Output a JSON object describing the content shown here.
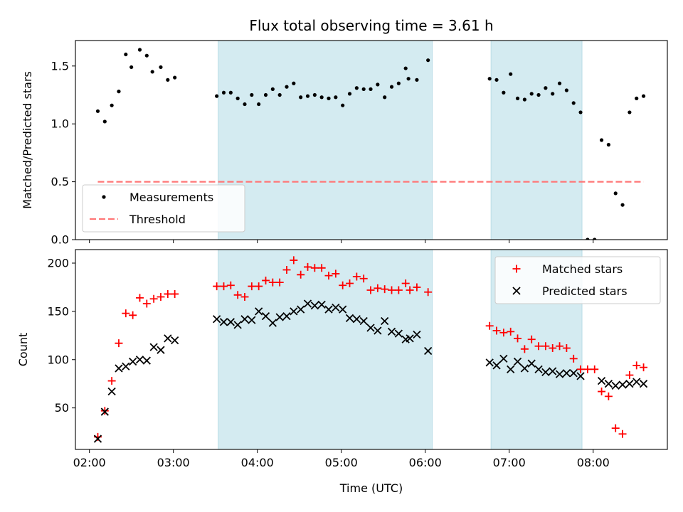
{
  "chart_data": {
    "title": "Flux total observing time = 3.61 h",
    "xlabel": "Time (UTC)",
    "x_ticks": [
      "02:00",
      "03:00",
      "04:00",
      "05:00",
      "06:00",
      "07:00",
      "08:00"
    ],
    "xlim": [
      "01:50",
      "08:53"
    ],
    "shaded_intervals": [
      [
        "03:32",
        "06:05"
      ],
      [
        "06:47",
        "07:52"
      ]
    ],
    "shade_color": "#d4ebf1",
    "panels": [
      {
        "type": "scatter",
        "ylabel": "Matched/Predicted stars",
        "ylim": [
          0,
          1.72
        ],
        "y_ticks": [
          "0.0",
          "0.5",
          "1.0",
          "1.5"
        ],
        "legend_position": "lower-left",
        "series": [
          {
            "name": "Measurements",
            "marker": "dot",
            "color": "#000000",
            "points": [
              [
                "02:06",
                1.11
              ],
              [
                "02:11",
                1.02
              ],
              [
                "02:16",
                1.16
              ],
              [
                "02:21",
                1.28
              ],
              [
                "02:26",
                1.6
              ],
              [
                "02:30",
                1.49
              ],
              [
                "02:36",
                1.64
              ],
              [
                "02:41",
                1.59
              ],
              [
                "02:45",
                1.45
              ],
              [
                "02:51",
                1.49
              ],
              [
                "02:56",
                1.38
              ],
              [
                "03:01",
                1.4
              ],
              [
                "03:31",
                1.24
              ],
              [
                "03:36",
                1.27
              ],
              [
                "03:41",
                1.27
              ],
              [
                "03:46",
                1.22
              ],
              [
                "03:51",
                1.17
              ],
              [
                "03:56",
                1.25
              ],
              [
                "04:01",
                1.17
              ],
              [
                "04:06",
                1.25
              ],
              [
                "04:11",
                1.3
              ],
              [
                "04:16",
                1.25
              ],
              [
                "04:21",
                1.32
              ],
              [
                "04:26",
                1.35
              ],
              [
                "04:31",
                1.23
              ],
              [
                "04:36",
                1.24
              ],
              [
                "04:41",
                1.25
              ],
              [
                "04:46",
                1.23
              ],
              [
                "04:51",
                1.22
              ],
              [
                "04:56",
                1.23
              ],
              [
                "05:01",
                1.16
              ],
              [
                "05:06",
                1.26
              ],
              [
                "05:11",
                1.31
              ],
              [
                "05:16",
                1.3
              ],
              [
                "05:21",
                1.3
              ],
              [
                "05:26",
                1.34
              ],
              [
                "05:31",
                1.23
              ],
              [
                "05:36",
                1.32
              ],
              [
                "05:41",
                1.35
              ],
              [
                "05:46",
                1.48
              ],
              [
                "05:48",
                1.39
              ],
              [
                "05:54",
                1.38
              ],
              [
                "06:02",
                1.55
              ],
              [
                "06:46",
                1.39
              ],
              [
                "06:51",
                1.38
              ],
              [
                "06:56",
                1.27
              ],
              [
                "07:01",
                1.43
              ],
              [
                "07:06",
                1.22
              ],
              [
                "07:11",
                1.21
              ],
              [
                "07:16",
                1.26
              ],
              [
                "07:21",
                1.25
              ],
              [
                "07:26",
                1.31
              ],
              [
                "07:31",
                1.26
              ],
              [
                "07:36",
                1.35
              ],
              [
                "07:41",
                1.29
              ],
              [
                "07:46",
                1.18
              ],
              [
                "07:51",
                1.1
              ],
              [
                "07:56",
                0.0
              ],
              [
                "08:01",
                0.0
              ],
              [
                "08:06",
                0.86
              ],
              [
                "08:11",
                0.82
              ],
              [
                "08:16",
                0.4
              ],
              [
                "08:21",
                0.3
              ],
              [
                "08:26",
                1.1
              ],
              [
                "08:31",
                1.22
              ],
              [
                "08:36",
                1.24
              ]
            ]
          },
          {
            "name": "Threshold",
            "marker": "dashed-line",
            "color": "#ff7777",
            "points": [
              [
                "02:06",
                0.5
              ],
              [
                "08:36",
                0.5
              ]
            ]
          }
        ]
      },
      {
        "type": "scatter",
        "ylabel": "Count",
        "ylim": [
          7,
          214
        ],
        "y_ticks": [
          "50",
          "100",
          "150",
          "200"
        ],
        "legend_position": "top-right",
        "series": [
          {
            "name": "Matched stars",
            "marker": "plus",
            "color": "#ff0000",
            "points": [
              [
                "02:06",
                20
              ],
              [
                "02:11",
                47
              ],
              [
                "02:16",
                78
              ],
              [
                "02:21",
                117
              ],
              [
                "02:26",
                148
              ],
              [
                "02:31",
                146
              ],
              [
                "02:36",
                164
              ],
              [
                "02:41",
                158
              ],
              [
                "02:46",
                163
              ],
              [
                "02:51",
                165
              ],
              [
                "02:56",
                168
              ],
              [
                "03:01",
                168
              ],
              [
                "03:31",
                176
              ],
              [
                "03:36",
                176
              ],
              [
                "03:41",
                177
              ],
              [
                "03:46",
                167
              ],
              [
                "03:51",
                165
              ],
              [
                "03:56",
                176
              ],
              [
                "04:01",
                176
              ],
              [
                "04:06",
                182
              ],
              [
                "04:11",
                180
              ],
              [
                "04:16",
                180
              ],
              [
                "04:21",
                193
              ],
              [
                "04:26",
                203
              ],
              [
                "04:31",
                188
              ],
              [
                "04:36",
                196
              ],
              [
                "04:41",
                195
              ],
              [
                "04:46",
                195
              ],
              [
                "04:51",
                187
              ],
              [
                "04:56",
                189
              ],
              [
                "05:01",
                177
              ],
              [
                "05:06",
                179
              ],
              [
                "05:11",
                186
              ],
              [
                "05:16",
                184
              ],
              [
                "05:21",
                172
              ],
              [
                "05:26",
                174
              ],
              [
                "05:31",
                173
              ],
              [
                "05:36",
                172
              ],
              [
                "05:41",
                172
              ],
              [
                "05:46",
                179
              ],
              [
                "05:49",
                172
              ],
              [
                "05:54",
                175
              ],
              [
                "06:02",
                170
              ],
              [
                "06:46",
                135
              ],
              [
                "06:51",
                130
              ],
              [
                "06:56",
                128
              ],
              [
                "07:01",
                129
              ],
              [
                "07:06",
                122
              ],
              [
                "07:11",
                111
              ],
              [
                "07:16",
                121
              ],
              [
                "07:21",
                114
              ],
              [
                "07:26",
                114
              ],
              [
                "07:31",
                112
              ],
              [
                "07:36",
                114
              ],
              [
                "07:41",
                112
              ],
              [
                "07:46",
                101
              ],
              [
                "07:51",
                90
              ],
              [
                "07:56",
                90
              ],
              [
                "08:01",
                90
              ],
              [
                "08:06",
                67
              ],
              [
                "08:11",
                62
              ],
              [
                "08:16",
                29
              ],
              [
                "08:21",
                23
              ],
              [
                "08:26",
                84
              ],
              [
                "08:31",
                94
              ],
              [
                "08:36",
                92
              ]
            ]
          },
          {
            "name": "Predicted stars",
            "marker": "x",
            "color": "#000000",
            "points": [
              [
                "02:06",
                18
              ],
              [
                "02:11",
                46
              ],
              [
                "02:16",
                67
              ],
              [
                "02:21",
                91
              ],
              [
                "02:26",
                93
              ],
              [
                "02:31",
                98
              ],
              [
                "02:36",
                100
              ],
              [
                "02:41",
                99
              ],
              [
                "02:46",
                113
              ],
              [
                "02:51",
                110
              ],
              [
                "02:56",
                122
              ],
              [
                "03:01",
                120
              ],
              [
                "03:31",
                142
              ],
              [
                "03:36",
                139
              ],
              [
                "03:41",
                139
              ],
              [
                "03:46",
                136
              ],
              [
                "03:51",
                142
              ],
              [
                "03:56",
                141
              ],
              [
                "04:01",
                150
              ],
              [
                "04:06",
                145
              ],
              [
                "04:11",
                138
              ],
              [
                "04:16",
                144
              ],
              [
                "04:21",
                145
              ],
              [
                "04:26",
                150
              ],
              [
                "04:31",
                152
              ],
              [
                "04:36",
                158
              ],
              [
                "04:41",
                156
              ],
              [
                "04:46",
                157
              ],
              [
                "04:51",
                152
              ],
              [
                "04:56",
                154
              ],
              [
                "05:01",
                152
              ],
              [
                "05:06",
                143
              ],
              [
                "05:11",
                142
              ],
              [
                "05:16",
                140
              ],
              [
                "05:21",
                133
              ],
              [
                "05:26",
                130
              ],
              [
                "05:31",
                140
              ],
              [
                "05:36",
                129
              ],
              [
                "05:41",
                127
              ],
              [
                "05:46",
                121
              ],
              [
                "05:49",
                122
              ],
              [
                "05:54",
                126
              ],
              [
                "06:02",
                109
              ],
              [
                "06:46",
                97
              ],
              [
                "06:51",
                94
              ],
              [
                "06:56",
                101
              ],
              [
                "07:01",
                90
              ],
              [
                "07:06",
                98
              ],
              [
                "07:11",
                91
              ],
              [
                "07:16",
                96
              ],
              [
                "07:21",
                90
              ],
              [
                "07:26",
                87
              ],
              [
                "07:31",
                88
              ],
              [
                "07:36",
                85
              ],
              [
                "07:41",
                86
              ],
              [
                "07:46",
                86
              ],
              [
                "07:51",
                83
              ],
              [
                "08:06",
                78
              ],
              [
                "08:11",
                75
              ],
              [
                "08:16",
                73
              ],
              [
                "08:21",
                74
              ],
              [
                "08:26",
                75
              ],
              [
                "08:31",
                77
              ],
              [
                "08:36",
                75
              ]
            ]
          }
        ]
      }
    ]
  }
}
